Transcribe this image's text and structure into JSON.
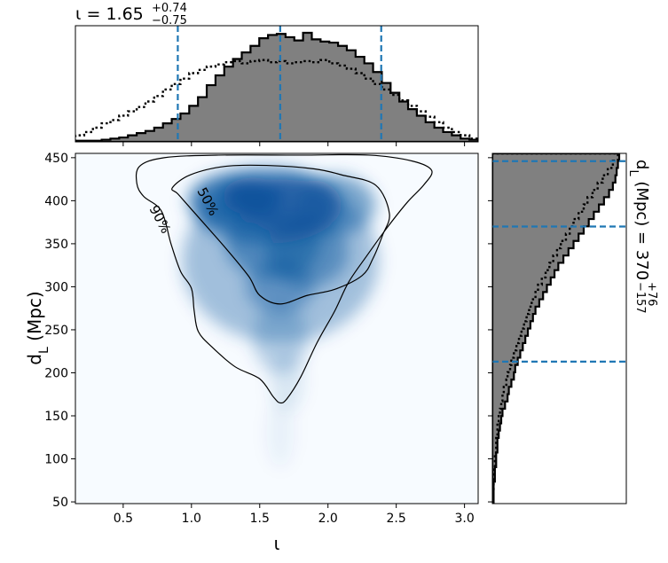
{
  "chart_data": {
    "type": "corner",
    "main": {
      "type": "heatmap",
      "colormap": "Blues",
      "xlabel": "ι",
      "ylabel": "d_L (Mpc)",
      "xlim": [
        0.15,
        3.1
      ],
      "ylim": [
        48,
        455
      ],
      "xticks": [
        "0.5",
        "1.0",
        "1.5",
        "2.0",
        "2.5",
        "3.0"
      ],
      "xtick_values": [
        0.5,
        1.0,
        1.5,
        2.0,
        2.5,
        3.0
      ],
      "yticks": [
        "50",
        "100",
        "150",
        "200",
        "250",
        "300",
        "350",
        "400",
        "450"
      ],
      "ytick_values": [
        50,
        100,
        150,
        200,
        250,
        300,
        350,
        400,
        450
      ],
      "contours": [
        {
          "label": "50%",
          "points": [
            [
              0.86,
              415
            ],
            [
              0.99,
              430
            ],
            [
              1.25,
              440
            ],
            [
              1.55,
              441
            ],
            [
              1.9,
              437
            ],
            [
              2.1,
              430
            ],
            [
              2.35,
              418
            ],
            [
              2.45,
              385
            ],
            [
              2.4,
              360
            ],
            [
              2.33,
              333
            ],
            [
              2.25,
              313
            ],
            [
              2.05,
              297
            ],
            [
              1.85,
              290
            ],
            [
              1.65,
              280
            ],
            [
              1.5,
              290
            ],
            [
              1.42,
              312
            ],
            [
              1.25,
              345
            ],
            [
              1.0,
              390
            ],
            [
              0.9,
              408
            ]
          ]
        },
        {
          "label": "90%",
          "points": [
            [
              0.6,
              420
            ],
            [
              0.62,
              440
            ],
            [
              0.8,
              450
            ],
            [
              1.2,
              453
            ],
            [
              1.8,
              453
            ],
            [
              2.3,
              453
            ],
            [
              2.62,
              446
            ],
            [
              2.76,
              435
            ],
            [
              2.7,
              418
            ],
            [
              2.58,
              398
            ],
            [
              2.43,
              368
            ],
            [
              2.28,
              335
            ],
            [
              2.15,
              305
            ],
            [
              2.05,
              272
            ],
            [
              1.92,
              235
            ],
            [
              1.8,
              195
            ],
            [
              1.7,
              170
            ],
            [
              1.65,
              165
            ],
            [
              1.6,
              172
            ],
            [
              1.5,
              193
            ],
            [
              1.32,
              207
            ],
            [
              1.15,
              230
            ],
            [
              1.05,
              248
            ],
            [
              1.02,
              272
            ],
            [
              1.0,
              298
            ],
            [
              0.92,
              318
            ],
            [
              0.85,
              350
            ],
            [
              0.78,
              388
            ],
            [
              0.65,
              405
            ]
          ]
        }
      ]
    },
    "marginal_x": {
      "title_prefix": "ι = ",
      "median": "1.65",
      "plus": "+0.74",
      "minus": "−0.75",
      "vlines": [
        0.9,
        1.65,
        2.39
      ],
      "bin_edges_range": [
        0.15,
        3.1
      ],
      "posterior": [
        1,
        1,
        1,
        2,
        3,
        4,
        6,
        8,
        10,
        13,
        17,
        21,
        26,
        33,
        41,
        52,
        61,
        69,
        76,
        82,
        88,
        95,
        98,
        99,
        96,
        93,
        100,
        94,
        92,
        91,
        88,
        84,
        78,
        72,
        64,
        54,
        45,
        37,
        30,
        24,
        18,
        13,
        9,
        6,
        3,
        2
      ],
      "prior": [
        6,
        9,
        13,
        17,
        20,
        24,
        28,
        32,
        37,
        42,
        48,
        53,
        58,
        63,
        66,
        69,
        71,
        73,
        74,
        72,
        74,
        75,
        73,
        74,
        72,
        73,
        74,
        73,
        75,
        72,
        70,
        67,
        63,
        58,
        53,
        48,
        43,
        38,
        33,
        28,
        23,
        18,
        13,
        9,
        6,
        3
      ]
    },
    "marginal_y": {
      "label": "d_L (Mpc) = ",
      "median": "370",
      "plus": "+76",
      "minus": "−157",
      "hlines": [
        213,
        370,
        446
      ],
      "bin_edges_range": [
        48,
        455
      ],
      "posterior": [
        1,
        1,
        1,
        2,
        2,
        3,
        3,
        4,
        4,
        5,
        6,
        7,
        8,
        10,
        12,
        13,
        15,
        17,
        18,
        20,
        22,
        24,
        26,
        28,
        30,
        32,
        34,
        37,
        40,
        43,
        46,
        49,
        52,
        56,
        60,
        64,
        68,
        72,
        76,
        80,
        84,
        88,
        92,
        95,
        97,
        98,
        99,
        100
      ],
      "prior": [
        0,
        0,
        1,
        1,
        1,
        2,
        2,
        3,
        3,
        4,
        4,
        5,
        6,
        7,
        8,
        9,
        11,
        12,
        14,
        15,
        17,
        19,
        21,
        23,
        25,
        27,
        29,
        31,
        34,
        36,
        39,
        42,
        45,
        48,
        51,
        54,
        58,
        61,
        64,
        68,
        72,
        75,
        79,
        83,
        87,
        91,
        95,
        99
      ]
    }
  }
}
